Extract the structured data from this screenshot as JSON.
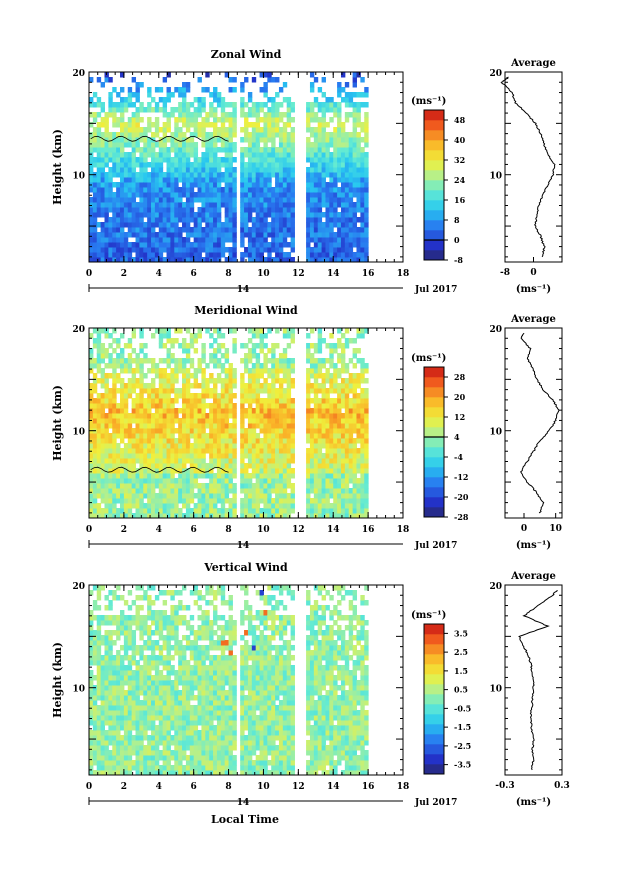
{
  "figure": {
    "bottom_xlabel": "Local Time",
    "date_label": "Jul 2017",
    "day_label": "14",
    "ylabel": "Height (km)",
    "unit_label": "(ms⁻¹)",
    "avg_xunit": "(ms⁻¹)",
    "avg_title": "Average"
  },
  "chart_data": [
    {
      "type": "heatmap",
      "title": "Zonal Wind",
      "xlabel": "Local Time",
      "ylabel": "Height (km)",
      "xlim": [
        0,
        18
      ],
      "ylim": [
        1.5,
        20
      ],
      "x_ticks": [
        0,
        2,
        4,
        6,
        8,
        10,
        12,
        14,
        16,
        18
      ],
      "y_tick_labels": [
        10,
        20
      ],
      "data_extent_x": [
        0,
        16
      ],
      "data_gaps_x": [
        [
          8.4,
          8.6
        ],
        [
          11.8,
          12.4
        ]
      ],
      "zero_contour": true,
      "colorbar": {
        "unit": "(ms⁻¹)",
        "range": [
          -8,
          52
        ],
        "ticks": [
          -8,
          0,
          8,
          16,
          24,
          32,
          40,
          48
        ],
        "zero_line": 0
      },
      "profile_desc": [
        [
          8,
          2
        ],
        [
          16,
          5
        ],
        [
          20,
          9
        ],
        [
          24,
          12
        ],
        [
          28,
          14
        ],
        [
          30,
          16
        ],
        [
          26,
          17
        ],
        [
          18,
          18
        ],
        [
          8,
          18.5
        ],
        [
          0,
          19
        ],
        [
          -2,
          19.5
        ]
      ],
      "average_profile": {
        "xlim": [
          -8,
          8
        ],
        "x_ticks": [
          -8,
          0
        ],
        "y_tick_labels": [
          10,
          20
        ],
        "height_km": [
          2,
          3,
          4,
          5,
          6,
          7,
          8,
          9,
          10,
          11,
          12,
          13,
          14,
          15,
          16,
          17,
          18,
          19,
          19.5
        ],
        "value": [
          2.5,
          3,
          2,
          0.5,
          1,
          1.5,
          2.5,
          4,
          5.5,
          6,
          4,
          3,
          2,
          0.5,
          -2,
          -5,
          -6,
          -9,
          -7
        ]
      }
    },
    {
      "type": "heatmap",
      "title": "Meridional Wind",
      "xlabel": "Local Time",
      "ylabel": "Height (km)",
      "xlim": [
        0,
        18
      ],
      "ylim": [
        1.5,
        20
      ],
      "x_ticks": [
        0,
        2,
        4,
        6,
        8,
        10,
        12,
        14,
        16,
        18
      ],
      "y_tick_labels": [
        10,
        20
      ],
      "data_extent_x": [
        0,
        16
      ],
      "data_gaps_x": [
        [
          8.4,
          8.6
        ],
        [
          11.8,
          12.4
        ]
      ],
      "zero_contour": true,
      "colorbar": {
        "unit": "(ms⁻¹)",
        "range": [
          -28,
          32
        ],
        "ticks": [
          -28,
          -20,
          -12,
          -4,
          4,
          12,
          20,
          28
        ],
        "zero_line": 4
      },
      "average_profile": {
        "xlim": [
          -6,
          12
        ],
        "x_ticks": [
          0,
          10
        ],
        "y_tick_labels": [
          10,
          20
        ],
        "height_km": [
          2,
          3,
          4,
          5,
          6,
          7,
          8,
          9,
          10,
          11,
          12,
          13,
          14,
          15,
          16,
          17,
          18,
          19,
          19.5
        ],
        "value": [
          5,
          6,
          4,
          1,
          -1,
          1,
          3,
          5,
          8,
          10,
          11,
          9,
          6,
          4,
          3,
          1,
          2,
          -1,
          0
        ]
      }
    },
    {
      "type": "heatmap",
      "title": "Vertical Wind",
      "xlabel": "Local Time",
      "ylabel": "Height (km)",
      "xlim": [
        0,
        18
      ],
      "ylim": [
        1.5,
        20
      ],
      "x_ticks": [
        0,
        2,
        4,
        6,
        8,
        10,
        12,
        14,
        16,
        18
      ],
      "y_tick_labels": [
        10,
        20
      ],
      "data_extent_x": [
        0,
        16
      ],
      "data_gaps_x": [
        [
          8.4,
          8.6
        ],
        [
          11.8,
          12.4
        ]
      ],
      "zero_contour": false,
      "colorbar": {
        "unit": "(ms⁻¹)",
        "range": [
          -4,
          4
        ],
        "ticks": [
          -3.5,
          -2.5,
          -1.5,
          -0.5,
          0.5,
          1.5,
          2.5,
          3.5
        ],
        "zero_line": null
      },
      "average_profile": {
        "xlim": [
          -0.3,
          0.3
        ],
        "x_ticks": [
          -0.3,
          0.3
        ],
        "y_tick_labels": [
          10,
          20
        ],
        "height_km": [
          2,
          3,
          4,
          5,
          6,
          7,
          8,
          9,
          10,
          11,
          12,
          13,
          14,
          15,
          16,
          17,
          18,
          19,
          19.5
        ],
        "value": [
          -0.02,
          0.0,
          -0.01,
          0.0,
          -0.02,
          -0.03,
          -0.02,
          -0.01,
          0.0,
          -0.01,
          -0.02,
          -0.05,
          -0.1,
          -0.15,
          0.15,
          -0.1,
          0.05,
          0.2,
          0.25
        ]
      }
    }
  ]
}
